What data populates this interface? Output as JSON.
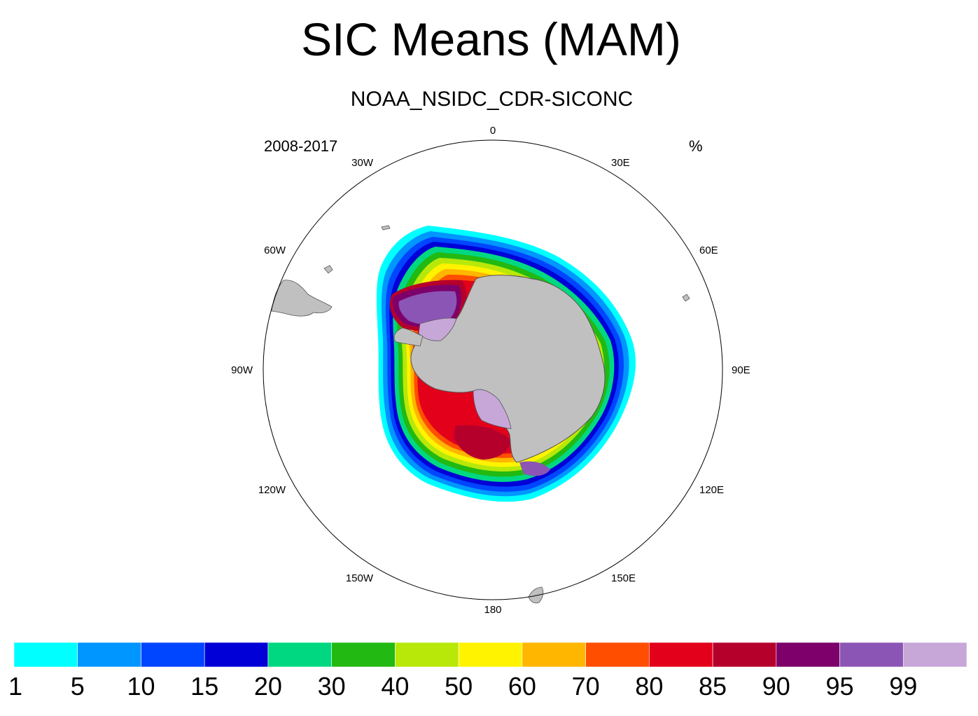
{
  "title": "SIC Means (MAM)",
  "subtitle": "NOAA_NSIDC_CDR-SICONC",
  "period": "2008-2017",
  "units": "%",
  "longitude_labels": [
    "0",
    "30E",
    "60E",
    "90E",
    "120E",
    "150E",
    "180",
    "150W",
    "120W",
    "90W",
    "60W",
    "30W"
  ],
  "colorbar": {
    "ticks": [
      "1",
      "5",
      "10",
      "15",
      "20",
      "30",
      "40",
      "50",
      "60",
      "70",
      "80",
      "85",
      "90",
      "95",
      "99"
    ],
    "colors": [
      "#00ffff",
      "#0096ff",
      "#0045ff",
      "#0000d7",
      "#00d881",
      "#22b913",
      "#b8e809",
      "#fff300",
      "#ffb600",
      "#ff4e00",
      "#e3001a",
      "#b6002c",
      "#7d006b",
      "#8b55b5",
      "#c6a7d8"
    ]
  },
  "map": {
    "projection": "south-polar-stereographic",
    "land_color": "#c0c0c0",
    "contour_fill_levels": [
      1,
      5,
      10,
      15,
      20,
      30,
      40,
      50,
      60,
      70,
      80,
      85,
      90,
      95,
      99
    ]
  }
}
